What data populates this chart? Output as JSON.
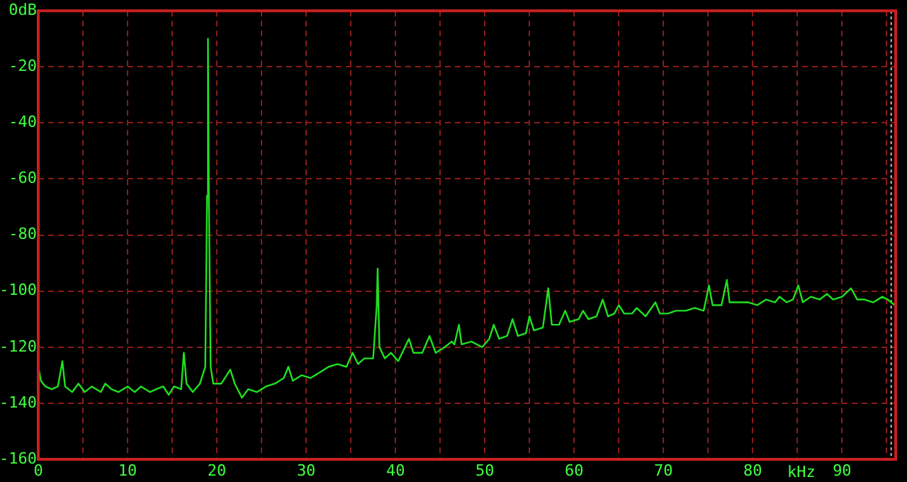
{
  "chart_data": {
    "type": "line",
    "xlabel": "kHz",
    "x": [
      0,
      0.3,
      0.8,
      1.5,
      2.2,
      2.7,
      3.0,
      3.8,
      4.5,
      5.2,
      6,
      7,
      7.5,
      8.2,
      9,
      10,
      10.8,
      11.5,
      12.5,
      13.2,
      14,
      14.6,
      15.2,
      16,
      16.3,
      16.6,
      17.3,
      18.1,
      18.7,
      18.9,
      19.0,
      19.1,
      19.3,
      19.6,
      20.5,
      21.5,
      22,
      22.8,
      23.5,
      24.5,
      25.5,
      26.5,
      27.5,
      28,
      28.5,
      29.5,
      30.5,
      31.5,
      32.5,
      33.5,
      34.5,
      35.2,
      35.8,
      36.5,
      37.5,
      37.9,
      38.0,
      38.2,
      38.8,
      39.5,
      40.3,
      41.5,
      42,
      43,
      43.8,
      44.5,
      45.5,
      46.3,
      46.6,
      47.1,
      47.4,
      48.5,
      49.7,
      50.5,
      51,
      51.6,
      52.5,
      53.1,
      53.7,
      54.6,
      55,
      55.5,
      56.5,
      57.1,
      57.5,
      58.3,
      59,
      59.5,
      60.5,
      61,
      61.6,
      62.5,
      63.2,
      63.8,
      64.5,
      65,
      65.6,
      66.5,
      67,
      68,
      69.1,
      69.6,
      70.5,
      71.4,
      72.5,
      73.5,
      74.5,
      75.1,
      75.5,
      76.5,
      77.1,
      77.4,
      78.5,
      79.5,
      80.5,
      81.5,
      82.5,
      83,
      83.8,
      84.5,
      85.1,
      85.6,
      86.5,
      87.5,
      88.3,
      89,
      90,
      91,
      91.7,
      92.5,
      93.5,
      94.5,
      95.1,
      95.9
    ],
    "series": [
      {
        "color": "#20e020",
        "values": [
          -127,
          -132,
          -134,
          -135,
          -134,
          -125,
          -134,
          -136,
          -133,
          -136,
          -134,
          -136,
          -133,
          -135,
          -136,
          -134,
          -136,
          -134,
          -136,
          -135,
          -134,
          -137,
          -134,
          -135,
          -122,
          -133,
          -136,
          -133,
          -127,
          -66,
          -10,
          -66,
          -127,
          -133,
          -133,
          -128,
          -133,
          -138,
          -135,
          -136,
          -134,
          -133,
          -131,
          -127,
          -132,
          -130,
          -131,
          -129,
          -127,
          -126,
          -127,
          -122,
          -126,
          -124,
          -124,
          -105,
          -92,
          -120,
          -124,
          -122,
          -125,
          -117,
          -122,
          -122,
          -116,
          -122,
          -120,
          -118,
          -119,
          -112,
          -119,
          -118,
          -120,
          -117,
          -112,
          -117,
          -116,
          -110,
          -116,
          -115,
          -109,
          -114,
          -113,
          -99,
          -112,
          -112,
          -107,
          -111,
          -110,
          -107,
          -110,
          -109,
          -103,
          -109,
          -108,
          -105,
          -108,
          -108,
          -106,
          -109,
          -104,
          -108,
          -108,
          -107,
          -107,
          -106,
          -107,
          -98,
          -105,
          -105,
          -96,
          -104,
          -104,
          -104,
          -105,
          -103,
          -104,
          -102,
          -104,
          -103,
          -98,
          -104,
          -102,
          -103,
          -101,
          -103,
          -102,
          -99,
          -103,
          -103,
          -104,
          -102,
          -103,
          -105
        ]
      }
    ],
    "xlim": [
      0,
      96
    ],
    "xticks": [
      0,
      {
        "value": 5,
        "label": null
      },
      10,
      {
        "value": 15,
        "label": null
      },
      20,
      {
        "value": 25,
        "label": null
      },
      30,
      {
        "value": 35,
        "label": null
      },
      40,
      {
        "value": 45,
        "label": null
      },
      50,
      {
        "value": 55,
        "label": null
      },
      60,
      {
        "value": 65,
        "label": null
      },
      70,
      {
        "value": 75,
        "label": null
      },
      80,
      {
        "value": 85,
        "label": null
      },
      90,
      {
        "value": 95,
        "label": null
      }
    ],
    "ylim": [
      -160,
      0
    ],
    "yticks": [
      {
        "value": 0,
        "label": "0dB"
      },
      -20,
      -40,
      -60,
      -80,
      -100,
      -120,
      -140,
      -160
    ],
    "grid": true,
    "legend": false,
    "marker": "none",
    "line_style": "solid",
    "ref_lines": [
      {
        "axis": "x",
        "value": 95.5,
        "label": null,
        "color": "#c0c0c0",
        "line_style": "dotted"
      }
    ]
  }
}
